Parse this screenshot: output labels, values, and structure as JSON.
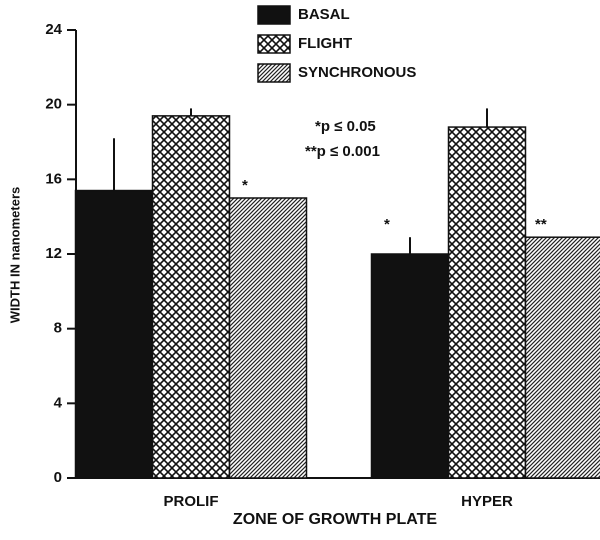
{
  "chart_data": {
    "type": "bar",
    "y_label": "WIDTH IN nanometers",
    "x_label": "ZONE OF GROWTH PLATE",
    "categories": [
      "PROLIF",
      "HYPER"
    ],
    "series": [
      {
        "name": "BASAL",
        "color": "#111111",
        "pattern": "solid",
        "values": [
          15.4,
          12.0
        ],
        "errors": [
          2.8,
          0.9
        ],
        "significance": [
          null,
          "*"
        ]
      },
      {
        "name": "FLIGHT",
        "color": "#111111",
        "pattern": "crosshatch",
        "values": [
          19.4,
          18.8
        ],
        "errors": [
          0.4,
          1.0
        ],
        "significance": [
          null,
          null
        ]
      },
      {
        "name": "SYNCHRONOUS",
        "color": "#111111",
        "pattern": "diagonal",
        "values": [
          15.0,
          12.9
        ],
        "errors": [
          null,
          null
        ],
        "significance": [
          "*",
          "**"
        ]
      }
    ],
    "notes": [
      "*p ≤ 0.05",
      "**p ≤ 0.001"
    ],
    "ylim": [
      0,
      24
    ],
    "yticks": [
      0,
      4,
      8,
      12,
      16,
      20,
      24
    ],
    "grid": false
  }
}
